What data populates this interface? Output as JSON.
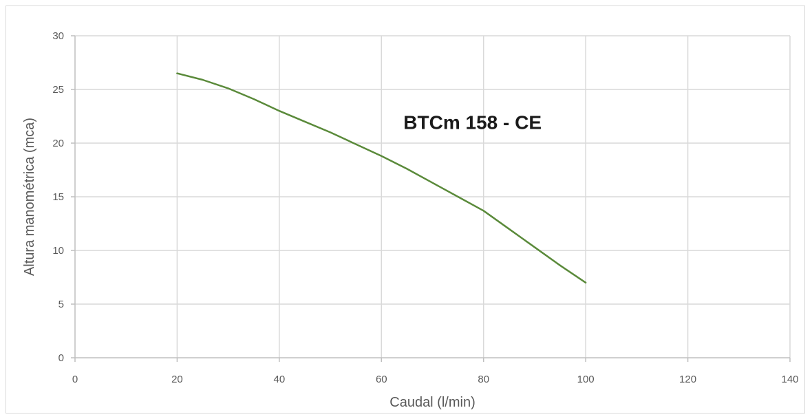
{
  "chart_data": {
    "type": "line",
    "xlabel": "Caudal (l/min)",
    "ylabel": "Altura manométrica (mca)",
    "xlim": [
      0,
      140
    ],
    "ylim": [
      0,
      30
    ],
    "xticks": [
      0,
      20,
      40,
      60,
      80,
      100,
      120,
      140
    ],
    "yticks": [
      0,
      5,
      10,
      15,
      20,
      25,
      30
    ],
    "grid": true,
    "annotation": {
      "text": "BTCm 158 - CE",
      "x": 60,
      "y": 21.5
    },
    "series": [
      {
        "color": "#5a8a3a",
        "x": [
          20,
          25,
          30,
          35,
          40,
          45,
          50,
          55,
          60,
          65,
          70,
          75,
          80,
          85,
          90,
          95,
          100
        ],
        "y": [
          26.5,
          25.9,
          25.1,
          24.1,
          23.0,
          22.0,
          21.0,
          19.9,
          18.8,
          17.6,
          16.3,
          15.0,
          13.7,
          12.0,
          10.3,
          8.6,
          7.0
        ]
      }
    ]
  }
}
